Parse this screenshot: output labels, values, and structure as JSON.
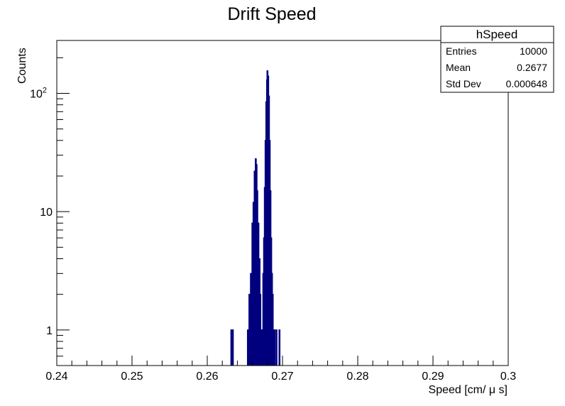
{
  "chart_data": {
    "type": "histogram",
    "title": "Drift Speed",
    "xlabel": "Speed [cm/ μ s]",
    "ylabel": "Counts",
    "xlim": [
      0.24,
      0.3
    ],
    "ylim": [
      0.5,
      280
    ],
    "yscale": "log",
    "grid": false,
    "x_ticks": [
      0.24,
      0.25,
      0.26,
      0.27,
      0.28,
      0.29,
      0.3
    ],
    "x_tick_labels": [
      "0.24",
      "0.25",
      "0.26",
      "0.27",
      "0.28",
      "0.29",
      "0.3"
    ],
    "y_ticks": [
      1,
      10,
      100
    ],
    "y_tick_labels": [
      "1",
      "10",
      "10^2"
    ],
    "line_color": "#00007f",
    "bins": [
      [
        0.2632,
        1
      ],
      [
        0.2634,
        1
      ],
      [
        0.2654,
        1
      ],
      [
        0.2656,
        2
      ],
      [
        0.2658,
        3
      ],
      [
        0.266,
        8
      ],
      [
        0.26615,
        12
      ],
      [
        0.2663,
        22
      ],
      [
        0.26645,
        28
      ],
      [
        0.26655,
        25
      ],
      [
        0.26665,
        15
      ],
      [
        0.2668,
        8
      ],
      [
        0.26695,
        4
      ],
      [
        0.26705,
        2
      ],
      [
        0.26715,
        1
      ],
      [
        0.2673,
        1
      ],
      [
        0.26745,
        3
      ],
      [
        0.26755,
        6
      ],
      [
        0.26765,
        16
      ],
      [
        0.26775,
        40
      ],
      [
        0.26785,
        85
      ],
      [
        0.26795,
        130
      ],
      [
        0.268,
        155
      ],
      [
        0.2681,
        140
      ],
      [
        0.2682,
        95
      ],
      [
        0.2683,
        40
      ],
      [
        0.2684,
        15
      ],
      [
        0.2685,
        6
      ],
      [
        0.2686,
        3
      ],
      [
        0.2687,
        2
      ],
      [
        0.2688,
        1
      ],
      [
        0.26895,
        1
      ],
      [
        0.2692,
        1
      ],
      [
        0.2696,
        1
      ]
    ]
  },
  "stats_box": {
    "name": "hSpeed",
    "rows": [
      {
        "label": "Entries",
        "value": "10000"
      },
      {
        "label": "Mean",
        "value": "0.2677"
      },
      {
        "label": "Std Dev",
        "value": "0.000648"
      }
    ]
  }
}
